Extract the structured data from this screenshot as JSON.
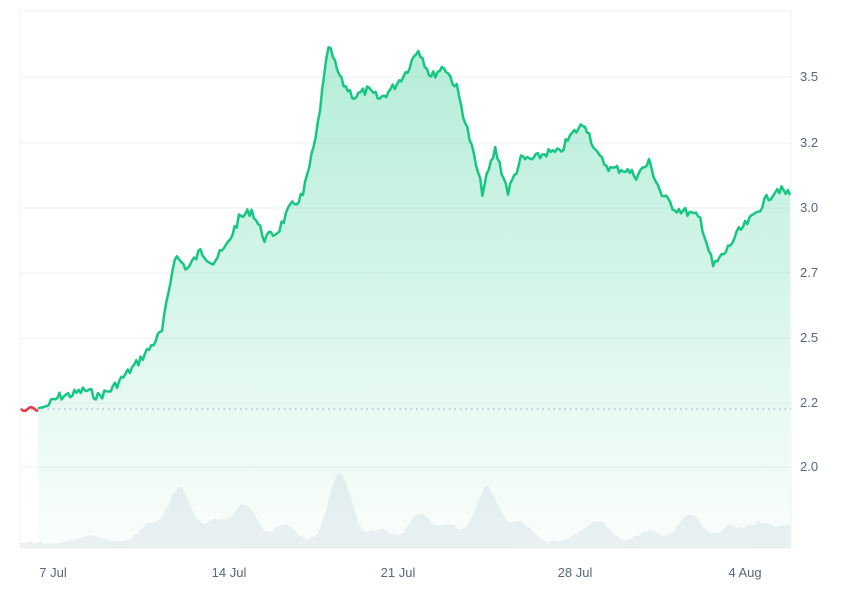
{
  "chart_data": {
    "type": "area",
    "title": "",
    "xlabel": "",
    "ylabel": "",
    "ylim": [
      1.85,
      3.65
    ],
    "grid": true,
    "baseline": 2.19,
    "x_ticks": [
      "7 Jul",
      "14 Jul",
      "21 Jul",
      "28 Jul",
      "4 Aug"
    ],
    "y_ticks": [
      "3.5",
      "3.2",
      "3.0",
      "2.7",
      "2.5",
      "2.2",
      "2.0"
    ],
    "colors": {
      "up": "#16c784",
      "down": "#ea3943",
      "volume": "#eff2f5",
      "grid": "#eff2f5",
      "text": "#58667e"
    },
    "series": [
      {
        "name": "price",
        "points": [
          [
            "6 Jul",
            2.19
          ],
          [
            "6 Jul",
            2.18
          ],
          [
            "7 Jul",
            2.19
          ],
          [
            "7 Jul",
            2.23
          ],
          [
            "8 Jul",
            2.24
          ],
          [
            "9 Jul",
            2.26
          ],
          [
            "9 Jul",
            2.23
          ],
          [
            "10 Jul",
            2.26
          ],
          [
            "10 Jul",
            2.32
          ],
          [
            "11 Jul",
            2.38
          ],
          [
            "11 Jul",
            2.45
          ],
          [
            "12 Jul",
            2.52
          ],
          [
            "12 Jul",
            2.78
          ],
          [
            "13 Jul",
            2.72
          ],
          [
            "13 Jul",
            2.8
          ],
          [
            "14 Jul",
            2.75
          ],
          [
            "14 Jul",
            2.82
          ],
          [
            "15 Jul",
            2.95
          ],
          [
            "15 Jul",
            2.99
          ],
          [
            "16 Jul",
            2.86
          ],
          [
            "16 Jul",
            2.89
          ],
          [
            "17 Jul",
            3.0
          ],
          [
            "17 Jul",
            3.04
          ],
          [
            "18 Jul",
            3.22
          ],
          [
            "18 Jul",
            3.64
          ],
          [
            "19 Jul",
            3.48
          ],
          [
            "19 Jul",
            3.41
          ],
          [
            "20 Jul",
            3.44
          ],
          [
            "20 Jul",
            3.4
          ],
          [
            "21 Jul",
            3.45
          ],
          [
            "21 Jul",
            3.52
          ],
          [
            "22 Jul",
            3.63
          ],
          [
            "22 Jul",
            3.5
          ],
          [
            "23 Jul",
            3.55
          ],
          [
            "23 Jul",
            3.45
          ],
          [
            "24 Jul",
            3.22
          ],
          [
            "24 Jul",
            3.05
          ],
          [
            "25 Jul",
            3.18
          ],
          [
            "25 Jul",
            3.05
          ],
          [
            "26 Jul",
            3.15
          ],
          [
            "26 Jul",
            3.15
          ],
          [
            "27 Jul",
            3.17
          ],
          [
            "27 Jul",
            3.17
          ],
          [
            "28 Jul",
            3.24
          ],
          [
            "28 Jul",
            3.29
          ],
          [
            "29 Jul",
            3.16
          ],
          [
            "29 Jul",
            3.12
          ],
          [
            "30 Jul",
            3.12
          ],
          [
            "30 Jul",
            3.1
          ],
          [
            "31 Jul",
            3.14
          ],
          [
            "31 Jul",
            3.04
          ],
          [
            "1 Aug",
            3.0
          ],
          [
            "1 Aug",
            2.98
          ],
          [
            "2 Aug",
            2.95
          ],
          [
            "2 Aug",
            2.73
          ],
          [
            "3 Aug",
            2.8
          ],
          [
            "3 Aug",
            2.89
          ],
          [
            "4 Aug",
            2.95
          ],
          [
            "4 Aug",
            3.02
          ],
          [
            "5 Aug",
            3.06
          ],
          [
            "5 Aug",
            3.04
          ]
        ]
      },
      {
        "name": "volume",
        "relative_peaks": [
          "14 Jul",
          "18 Jul",
          "21 Jul",
          "25 Jul"
        ]
      }
    ]
  }
}
